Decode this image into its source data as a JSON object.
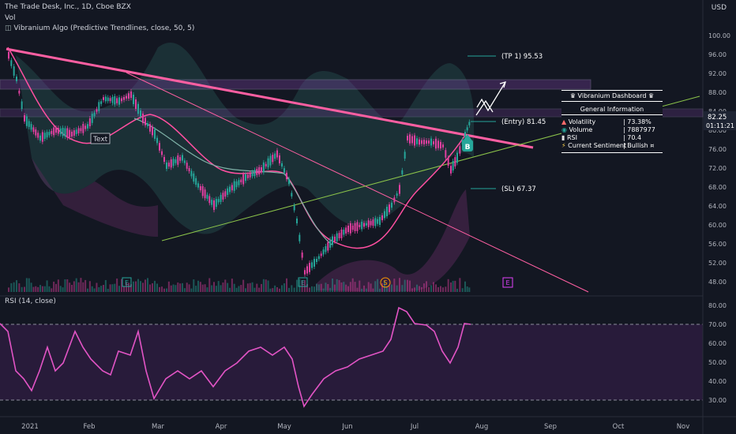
{
  "header": {
    "symbol_line": "The Trade Desk, Inc., 1D, Cboe BZX",
    "vol_label": "Vol",
    "indicator_line": "Vibranium Algo (Predictive Trendlines, close, 50, 5)",
    "currency": "USD"
  },
  "price_axis": {
    "ticks": [
      "100.00",
      "96.00",
      "92.00",
      "88.00",
      "84.00",
      "80.00",
      "76.00",
      "72.00",
      "68.00",
      "64.00",
      "60.00",
      "56.00",
      "52.00",
      "48.00"
    ],
    "last_price": "82.25",
    "countdown": "01:11:21"
  },
  "rsi_panel": {
    "label": "RSI (14, close)",
    "ticks": [
      "80.00",
      "70.00",
      "60.00",
      "50.00",
      "40.00",
      "30.00"
    ]
  },
  "time_axis": {
    "labels": [
      "2021",
      "Feb",
      "Mar",
      "Apr",
      "May",
      "Jun",
      "Jul",
      "Aug",
      "Sep",
      "Oct",
      "Nov"
    ]
  },
  "annotations": {
    "tp": "(TP 1) 95.53",
    "entry": "(Entry) 81.45",
    "sl": "(SL) 67.37",
    "text_box": "Text",
    "b_marker": "B",
    "e_marker": "E",
    "s_marker": "S"
  },
  "dashboard": {
    "title": "Vibranium Dashboard",
    "subtitle": "General Information",
    "rows": [
      {
        "label": "Volatility",
        "value": "73.38%"
      },
      {
        "label": "Volume",
        "value": "7887977"
      },
      {
        "label": "RSI",
        "value": "70.4"
      },
      {
        "label": "Current Sentiment",
        "value": "Bullish"
      }
    ]
  },
  "colors": {
    "background": "#131722",
    "bull": "#26a69a",
    "bear": "#e040a0",
    "trendline": "#ff5fa2",
    "rsi_line": "#e254c5",
    "rsi_band": "#3b1f4e"
  }
}
